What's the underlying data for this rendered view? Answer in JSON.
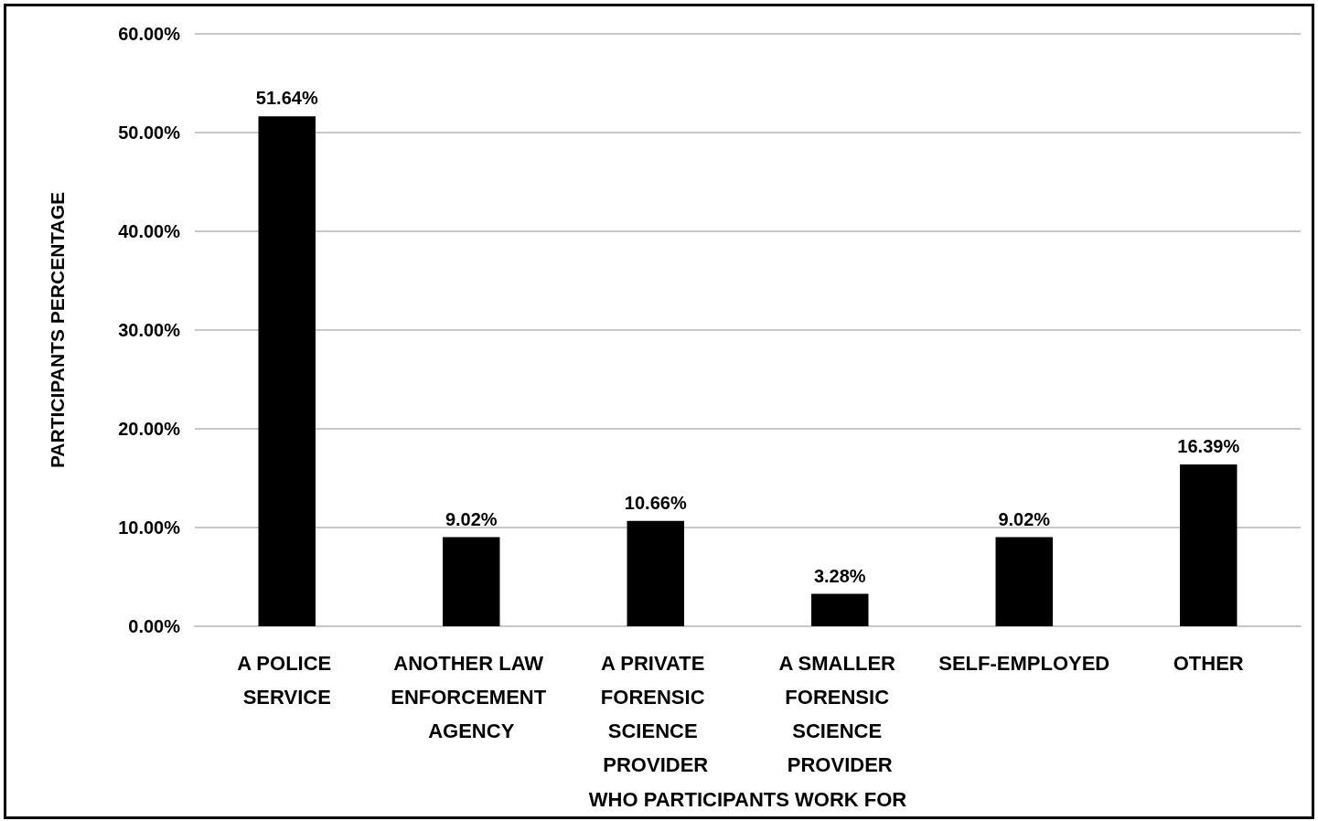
{
  "chart_data": {
    "type": "bar",
    "xlabel": "WHO PARTICIPANTS WORK FOR",
    "ylabel": "PARTICIPANTS PERCENTAGE",
    "categories": [
      "A POLICE SERVICE",
      "ANOTHER LAW ENFORCEMENT AGENCY",
      "A PRIVATE FORENSIC SCIENCE PROVIDER",
      "A SMALLER FORENSIC SCIENCE PROVIDER",
      "SELF-EMPLOYED",
      "OTHER"
    ],
    "values": [
      51.64,
      9.02,
      10.66,
      3.28,
      9.02,
      16.39
    ],
    "value_labels": [
      "51.64%",
      "9.02%",
      "10.66%",
      "3.28%",
      "9.02%",
      "16.39%"
    ],
    "color": "#000000",
    "ylim": [
      0,
      60
    ],
    "yticks": [
      {
        "value": 0,
        "label": "0.00%"
      },
      {
        "value": 10,
        "label": "10.00%"
      },
      {
        "value": 20,
        "label": "20.00%"
      },
      {
        "value": 30,
        "label": "30.00%"
      },
      {
        "value": 40,
        "label": "40.00%"
      },
      {
        "value": 50,
        "label": "50.00%"
      },
      {
        "value": 60,
        "label": "60.00%"
      }
    ],
    "grid": "y"
  }
}
